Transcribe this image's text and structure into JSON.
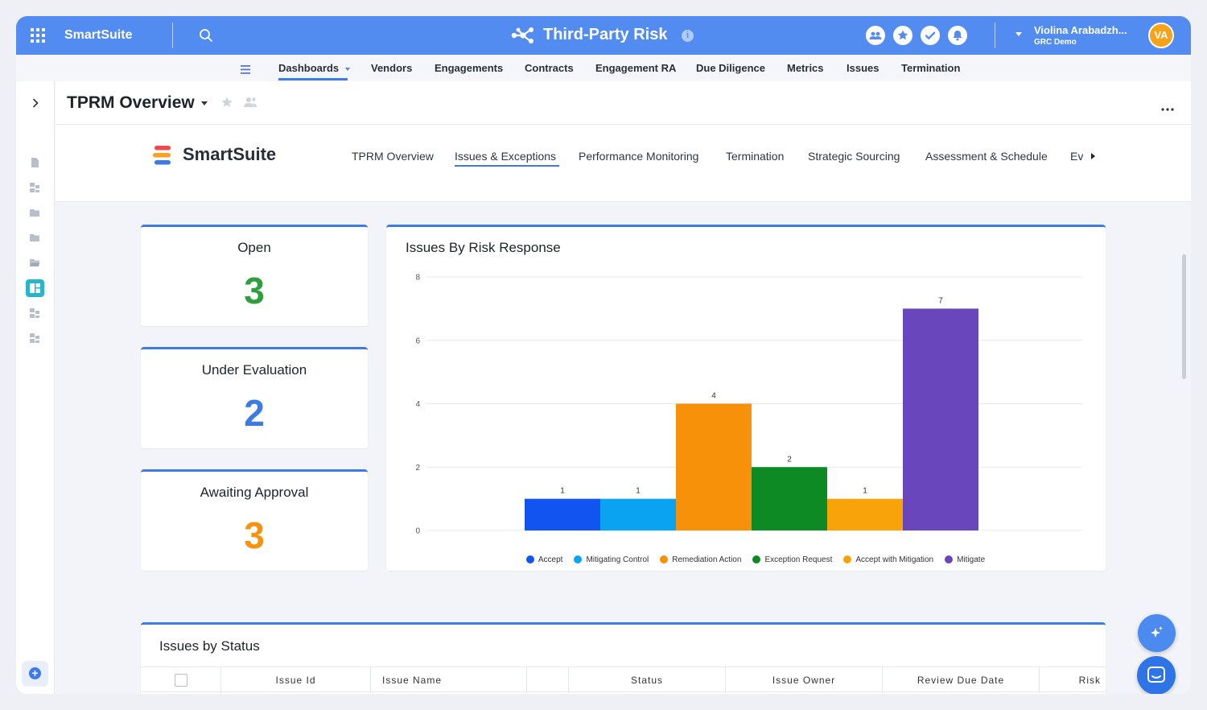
{
  "app": {
    "brand": "SmartSuite",
    "solution_title": "Third-Party Risk",
    "user_name": "Violina Arabadzh...",
    "user_org": "GRC Demo",
    "user_initials": "VA"
  },
  "menu": {
    "items": [
      {
        "label": "Dashboards",
        "active": true
      },
      {
        "label": "Vendors"
      },
      {
        "label": "Engagements"
      },
      {
        "label": "Contracts"
      },
      {
        "label": "Engagement RA"
      },
      {
        "label": "Due Diligence"
      },
      {
        "label": "Metrics"
      },
      {
        "label": "Issues"
      },
      {
        "label": "Termination"
      }
    ]
  },
  "view": {
    "title": "TPRM Overview"
  },
  "dashboard_nav": {
    "brand": "SmartSuite",
    "tabs": [
      {
        "label": "TPRM Overview"
      },
      {
        "label": "Issues & Exceptions",
        "active": true
      },
      {
        "label": "Performance Monitoring"
      },
      {
        "label": "Termination"
      },
      {
        "label": "Strategic Sourcing"
      },
      {
        "label": "Assessment & Schedule"
      },
      {
        "label": "Ev"
      }
    ]
  },
  "stats": [
    {
      "label": "Open",
      "value": "3",
      "color": "#2e9e3e"
    },
    {
      "label": "Under Evaluation",
      "value": "2",
      "color": "#3c7be4"
    },
    {
      "label": "Awaiting Approval",
      "value": "3",
      "color": "#f59310"
    }
  ],
  "chart_data": {
    "type": "bar",
    "title": "Issues By Risk Response",
    "categories": [
      "Accept",
      "Mitigating Control",
      "Remediation Action",
      "Exception Request",
      "Accept with Mitigation",
      "Mitigate"
    ],
    "values": [
      1,
      1,
      4,
      2,
      1,
      7
    ],
    "colors": [
      "#1254ef",
      "#0aa3f2",
      "#f8910a",
      "#0e8a24",
      "#f9a30a",
      "#6a46bd"
    ],
    "ylim": [
      0,
      8
    ],
    "yticks": [
      0,
      2,
      4,
      6,
      8
    ],
    "legend_position": "bottom",
    "grid": true
  },
  "table": {
    "title": "Issues by Status",
    "columns": [
      "Issue Id",
      "Issue Name",
      "",
      "Status",
      "Issue Owner",
      "Review Due Date",
      "Risk"
    ]
  }
}
